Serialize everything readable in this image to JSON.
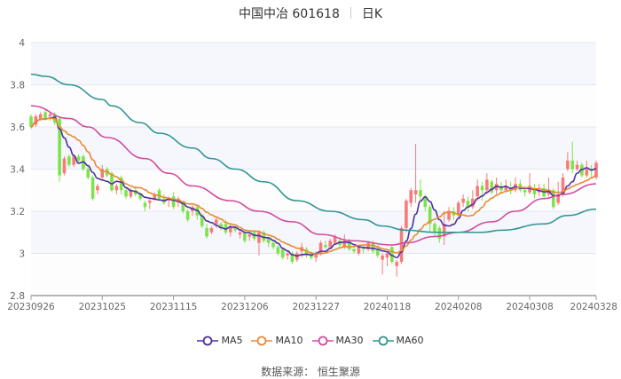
{
  "title": {
    "name": "中国中冶 601618",
    "period": "日K"
  },
  "source": "数据来源： 恒生聚源",
  "colors": {
    "up": "#f77b7b",
    "down": "#7de34b",
    "grid": "#e3e7ef",
    "band": "#f5f7fc",
    "axis": "#9a9ca8"
  },
  "chart_data": {
    "type": "candlestick",
    "ylim": [
      2.8,
      4
    ],
    "yticks": [
      "2.8",
      "3",
      "3.2",
      "3.4",
      "3.6",
      "3.8",
      "4"
    ],
    "xticks": [
      "20230926",
      "20231025",
      "20231115",
      "20231206",
      "20231227",
      "20240118",
      "20240208",
      "20240308",
      "20240328"
    ],
    "candle_fields": [
      "date",
      "open",
      "close",
      "low",
      "high"
    ],
    "candles": [
      [
        "20230926",
        3.65,
        3.6,
        3.59,
        3.66
      ],
      [
        "20230927",
        3.61,
        3.65,
        3.6,
        3.66
      ],
      [
        "20230928",
        3.64,
        3.66,
        3.63,
        3.67
      ],
      [
        "20231009",
        3.67,
        3.64,
        3.63,
        3.68
      ],
      [
        "20231010",
        3.65,
        3.66,
        3.63,
        3.67
      ],
      [
        "20231011",
        3.66,
        3.62,
        3.61,
        3.67
      ],
      [
        "20231012",
        3.64,
        3.37,
        3.34,
        3.65
      ],
      [
        "20231013",
        3.38,
        3.45,
        3.37,
        3.46
      ],
      [
        "20231016",
        3.46,
        3.42,
        3.41,
        3.47
      ],
      [
        "20231017",
        3.42,
        3.46,
        3.41,
        3.47
      ],
      [
        "20231018",
        3.46,
        3.44,
        3.43,
        3.47
      ],
      [
        "20231019",
        3.46,
        3.4,
        3.39,
        3.47
      ],
      [
        "20231020",
        3.4,
        3.36,
        3.35,
        3.41
      ],
      [
        "20231023",
        3.36,
        3.26,
        3.25,
        3.37
      ],
      [
        "20231024",
        3.3,
        3.32,
        3.28,
        3.33
      ],
      [
        "20231025",
        3.36,
        3.4,
        3.35,
        3.42
      ],
      [
        "20231026",
        3.4,
        3.37,
        3.36,
        3.41
      ],
      [
        "20231027",
        3.38,
        3.3,
        3.29,
        3.39
      ],
      [
        "20231030",
        3.3,
        3.32,
        3.28,
        3.33
      ],
      [
        "20231031",
        3.36,
        3.3,
        3.28,
        3.37
      ],
      [
        "20231101",
        3.3,
        3.27,
        3.26,
        3.31
      ],
      [
        "20231102",
        3.27,
        3.3,
        3.26,
        3.31
      ],
      [
        "20231103",
        3.3,
        3.28,
        3.27,
        3.32
      ],
      [
        "20231106",
        3.28,
        3.26,
        3.25,
        3.29
      ],
      [
        "20231107",
        3.24,
        3.22,
        3.2,
        3.25
      ],
      [
        "20231108",
        3.24,
        3.25,
        3.21,
        3.26
      ],
      [
        "20231109",
        3.26,
        3.28,
        3.25,
        3.29
      ],
      [
        "20231110",
        3.3,
        3.26,
        3.25,
        3.31
      ],
      [
        "20231113",
        3.26,
        3.24,
        3.23,
        3.28
      ],
      [
        "20231114",
        3.25,
        3.26,
        3.22,
        3.27
      ],
      [
        "20231115",
        3.27,
        3.22,
        3.21,
        3.29
      ],
      [
        "20231116",
        3.24,
        3.26,
        3.22,
        3.27
      ],
      [
        "20231117",
        3.24,
        3.2,
        3.19,
        3.25
      ],
      [
        "20231120",
        3.2,
        3.16,
        3.15,
        3.21
      ],
      [
        "20231121",
        3.2,
        3.22,
        3.18,
        3.23
      ],
      [
        "20231122",
        3.22,
        3.18,
        3.16,
        3.23
      ],
      [
        "20231123",
        3.18,
        3.13,
        3.12,
        3.19
      ],
      [
        "20231124",
        3.12,
        3.08,
        3.07,
        3.14
      ],
      [
        "20231127",
        3.1,
        3.12,
        3.09,
        3.13
      ],
      [
        "20231128",
        3.14,
        3.16,
        3.12,
        3.17
      ],
      [
        "20231129",
        3.14,
        3.12,
        3.11,
        3.15
      ],
      [
        "20231130",
        3.14,
        3.1,
        3.09,
        3.16
      ],
      [
        "20231201",
        3.1,
        3.13,
        3.08,
        3.14
      ],
      [
        "20231204",
        3.12,
        3.11,
        3.1,
        3.13
      ],
      [
        "20231205",
        3.09,
        3.1,
        3.07,
        3.11
      ],
      [
        "20231206",
        3.1,
        3.06,
        3.05,
        3.11
      ],
      [
        "20231207",
        3.08,
        3.09,
        3.06,
        3.1
      ],
      [
        "20231208",
        3.1,
        3.07,
        3.06,
        3.11
      ],
      [
        "20231211",
        3.05,
        3.1,
        2.99,
        3.11
      ],
      [
        "20231212",
        3.1,
        3.06,
        3.05,
        3.11
      ],
      [
        "20231213",
        3.07,
        3.05,
        3.03,
        3.08
      ],
      [
        "20231214",
        3.05,
        3.03,
        3.02,
        3.06
      ],
      [
        "20231215",
        3.03,
        3.0,
        2.99,
        3.04
      ],
      [
        "20231218",
        3.02,
        2.98,
        2.97,
        3.03
      ],
      [
        "20231219",
        2.99,
        3.0,
        2.97,
        3.01
      ],
      [
        "20231220",
        3.0,
        2.96,
        2.95,
        3.01
      ],
      [
        "20231221",
        2.97,
        3.0,
        2.96,
        3.01
      ],
      [
        "20231222",
        3.01,
        3.03,
        2.98,
        3.05
      ],
      [
        "20231225",
        3.02,
        2.99,
        2.98,
        3.03
      ],
      [
        "20231226",
        3.0,
        2.98,
        2.97,
        3.01
      ],
      [
        "20231227",
        2.98,
        3.0,
        2.96,
        3.01
      ],
      [
        "20231228",
        3.0,
        3.05,
        2.99,
        3.06
      ],
      [
        "20231229",
        3.04,
        3.03,
        3.02,
        3.06
      ],
      [
        "20240102",
        3.03,
        3.06,
        3.02,
        3.07
      ],
      [
        "20240103",
        3.05,
        3.08,
        3.04,
        3.09
      ],
      [
        "20240104",
        3.06,
        3.04,
        3.03,
        3.07
      ],
      [
        "20240105",
        3.03,
        3.06,
        3.02,
        3.09
      ],
      [
        "20240108",
        3.06,
        3.02,
        3.01,
        3.07
      ],
      [
        "20240109",
        3.02,
        3.01,
        3.0,
        3.03
      ],
      [
        "20240110",
        3.0,
        3.03,
        2.99,
        3.04
      ],
      [
        "20240111",
        3.03,
        3.02,
        3.0,
        3.04
      ],
      [
        "20240112",
        3.02,
        3.05,
        3.01,
        3.06
      ],
      [
        "20240115",
        3.05,
        3.01,
        3.0,
        3.06
      ],
      [
        "20240116",
        3.02,
        2.99,
        2.98,
        3.04
      ],
      [
        "20240117",
        2.97,
        2.99,
        2.9,
        3.0
      ],
      [
        "20240118",
        2.98,
        3.0,
        2.94,
        3.01
      ],
      [
        "20240119",
        3.03,
        2.96,
        2.95,
        3.04
      ],
      [
        "20240122",
        2.94,
        2.96,
        2.89,
        2.97
      ],
      [
        "20240123",
        2.96,
        3.12,
        2.95,
        3.13
      ],
      [
        "20240124",
        3.12,
        3.25,
        3.1,
        3.26
      ],
      [
        "20240125",
        3.24,
        3.3,
        3.22,
        3.31
      ],
      [
        "20240126",
        3.28,
        3.3,
        3.24,
        3.52
      ],
      [
        "20240129",
        3.3,
        3.27,
        3.25,
        3.35
      ],
      [
        "20240130",
        3.27,
        3.22,
        3.2,
        3.28
      ],
      [
        "20240131",
        3.22,
        3.14,
        3.1,
        3.23
      ],
      [
        "20240201",
        3.14,
        3.1,
        3.08,
        3.15
      ],
      [
        "20240202",
        3.12,
        3.07,
        3.05,
        3.13
      ],
      [
        "20240205",
        3.08,
        3.14,
        3.04,
        3.2
      ],
      [
        "20240206",
        3.16,
        3.2,
        3.15,
        3.22
      ],
      [
        "20240207",
        3.2,
        3.18,
        3.16,
        3.22
      ],
      [
        "20240208",
        3.18,
        3.24,
        3.17,
        3.25
      ],
      [
        "20240219",
        3.24,
        3.26,
        3.22,
        3.28
      ],
      [
        "20240220",
        3.25,
        3.22,
        3.2,
        3.27
      ],
      [
        "20240221",
        3.22,
        3.26,
        3.21,
        3.3
      ],
      [
        "20240222",
        3.27,
        3.32,
        3.25,
        3.35
      ],
      [
        "20240223",
        3.32,
        3.3,
        3.25,
        3.34
      ],
      [
        "20240226",
        3.3,
        3.35,
        3.28,
        3.38
      ],
      [
        "20240227",
        3.34,
        3.29,
        3.28,
        3.35
      ],
      [
        "20240228",
        3.3,
        3.33,
        3.28,
        3.36
      ],
      [
        "20240229",
        3.32,
        3.3,
        3.28,
        3.34
      ],
      [
        "20240301",
        3.3,
        3.32,
        3.29,
        3.35
      ],
      [
        "20240304",
        3.31,
        3.3,
        3.28,
        3.34
      ],
      [
        "20240305",
        3.3,
        3.33,
        3.29,
        3.36
      ],
      [
        "20240306",
        3.33,
        3.3,
        3.29,
        3.35
      ],
      [
        "20240307",
        3.3,
        3.29,
        3.27,
        3.32
      ],
      [
        "20240308",
        3.29,
        3.32,
        3.28,
        3.38
      ],
      [
        "20240311",
        3.31,
        3.28,
        3.26,
        3.33
      ],
      [
        "20240312",
        3.29,
        3.3,
        3.27,
        3.33
      ],
      [
        "20240313",
        3.31,
        3.27,
        3.26,
        3.33
      ],
      [
        "20240314",
        3.28,
        3.3,
        3.27,
        3.36
      ],
      [
        "20240315",
        3.3,
        3.22,
        3.21,
        3.31
      ],
      [
        "20240318",
        3.24,
        3.28,
        3.23,
        3.34
      ],
      [
        "20240319",
        3.28,
        3.36,
        3.27,
        3.38
      ],
      [
        "20240320",
        3.4,
        3.44,
        3.39,
        3.48
      ],
      [
        "20240321",
        3.44,
        3.4,
        3.38,
        3.53
      ],
      [
        "20240322",
        3.4,
        3.42,
        3.39,
        3.44
      ],
      [
        "20240325",
        3.42,
        3.37,
        3.36,
        3.43
      ],
      [
        "20240326",
        3.37,
        3.4,
        3.36,
        3.44
      ],
      [
        "20240327",
        3.4,
        3.39,
        3.36,
        3.42
      ],
      [
        "20240328",
        3.36,
        3.43,
        3.35,
        3.44
      ]
    ],
    "series": [
      {
        "name": "MA5",
        "color": "#4f2f9f",
        "window": 5
      },
      {
        "name": "MA10",
        "color": "#e88a32",
        "window": 10
      },
      {
        "name": "MA30",
        "color": "#d24b9f",
        "points": [
          [
            "20230926",
            3.7
          ],
          [
            "20231016",
            3.64
          ],
          [
            "20231020",
            3.6
          ],
          [
            "20231026",
            3.55
          ],
          [
            "20231107",
            3.45
          ],
          [
            "20231114",
            3.38
          ],
          [
            "20231121",
            3.32
          ],
          [
            "20231201",
            3.25
          ],
          [
            "20231211",
            3.2
          ],
          [
            "20231220",
            3.15
          ],
          [
            "20231228",
            3.09
          ],
          [
            "20240109",
            3.06
          ],
          [
            "20240119",
            3.04
          ],
          [
            "20240124",
            3.05
          ],
          [
            "20240201",
            3.08
          ],
          [
            "20240208",
            3.1
          ],
          [
            "20240227",
            3.15
          ],
          [
            "20240305",
            3.2
          ],
          [
            "20240313",
            3.26
          ],
          [
            "20240319",
            3.28
          ],
          [
            "20240328",
            3.33
          ]
        ]
      },
      {
        "name": "MA60",
        "color": "#2f9592",
        "points": [
          [
            "20230926",
            3.85
          ],
          [
            "20231009",
            3.84
          ],
          [
            "20231016",
            3.8
          ],
          [
            "20231025",
            3.73
          ],
          [
            "20231027",
            3.7
          ],
          [
            "20231106",
            3.62
          ],
          [
            "20231110",
            3.57
          ],
          [
            "20231121",
            3.5
          ],
          [
            "20231127",
            3.45
          ],
          [
            "20231204",
            3.4
          ],
          [
            "20231212",
            3.34
          ],
          [
            "20231221",
            3.25
          ],
          [
            "20240102",
            3.2
          ],
          [
            "20240111",
            3.16
          ],
          [
            "20240117",
            3.13
          ],
          [
            "20240124",
            3.11
          ],
          [
            "20240201",
            3.1
          ],
          [
            "20240223",
            3.1
          ],
          [
            "20240229",
            3.11
          ],
          [
            "20240313",
            3.14
          ],
          [
            "20240320",
            3.18
          ],
          [
            "20240328",
            3.21
          ]
        ]
      }
    ],
    "legend": "bottom"
  }
}
